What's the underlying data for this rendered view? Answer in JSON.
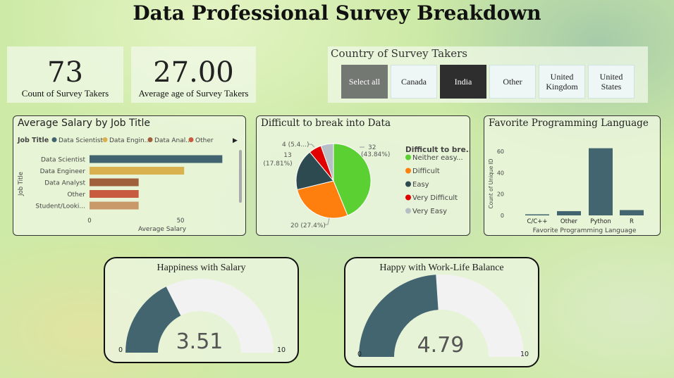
{
  "title": "Data Professional Survey Breakdown",
  "kpis": {
    "count": {
      "value": "73",
      "label": "Count of Survey Takers"
    },
    "age": {
      "value": "27.00",
      "label": "Average age of Survey Takers"
    }
  },
  "country_slicer": {
    "title": "Country of Survey Takers",
    "buttons": [
      "Select all",
      "Canada",
      "India",
      "Other",
      "United Kingdom",
      "United States"
    ],
    "selected": "India"
  },
  "colors": {
    "dark_slate": "#436570",
    "gauge_bg": "#f2f2f2",
    "data_scientist": "#41636f",
    "data_engineer": "#d9b14f",
    "data_analyst": "#a0603c",
    "other": "#c85c3e",
    "student": "#c9996a",
    "neither": "#5bd033",
    "difficult": "#ff7f0e",
    "easy": "#2d4a51",
    "very_difficult": "#e00000",
    "very_easy": "#b8bec6"
  },
  "chart_data": [
    {
      "type": "bar",
      "orientation": "horizontal",
      "title": "Average Salary by Job Title",
      "legend_title": "Job Title",
      "legend": [
        "Data Scientist",
        "Data Engin...",
        "Data Anal...",
        "Other"
      ],
      "categories": [
        "Data Scientist",
        "Data Engineer",
        "Data Analyst",
        "Other",
        "Student/Looki..."
      ],
      "values": [
        73,
        52,
        27,
        27,
        27
      ],
      "xlabel": "Average Salary",
      "ylabel": "Job Title",
      "xticks": [
        "0",
        "50"
      ],
      "xlim": [
        0,
        80
      ]
    },
    {
      "type": "pie",
      "title": "Difficult to break into Data",
      "legend_title": "Difficult to bre...",
      "slices": [
        {
          "label": "Neither easy...",
          "value": 32,
          "data_label": "32\n(43.84%)"
        },
        {
          "label": "Difficult",
          "value": 20,
          "data_label": "20 (27.4%)"
        },
        {
          "label": "Easy",
          "value": 13,
          "data_label": "13\n(17.81%)"
        },
        {
          "label": "Very Difficult",
          "value": 4,
          "data_label": "4 (5.4...)"
        },
        {
          "label": "Very Easy",
          "value": 4,
          "data_label": ""
        }
      ]
    },
    {
      "type": "bar",
      "title": "Favorite Programming Language",
      "categories": [
        "C/C++",
        "Other",
        "Python",
        "R"
      ],
      "values": [
        1,
        4,
        63,
        5
      ],
      "xlabel": "Favorite Programming Language",
      "ylabel": "Count of Unique ID",
      "yticks": [
        "0",
        "20",
        "40",
        "60"
      ],
      "ylim": [
        0,
        68
      ]
    },
    {
      "type": "gauge",
      "title": "Happiness with Salary",
      "value": 3.51,
      "value_label": "3.51",
      "min": 0,
      "max": 10,
      "min_label": "0",
      "max_label": "10"
    },
    {
      "type": "gauge",
      "title": "Happy with Work-Life Balance",
      "value": 4.79,
      "value_label": "4.79",
      "min": 0,
      "max": 10,
      "min_label": "0",
      "max_label": "10"
    }
  ]
}
